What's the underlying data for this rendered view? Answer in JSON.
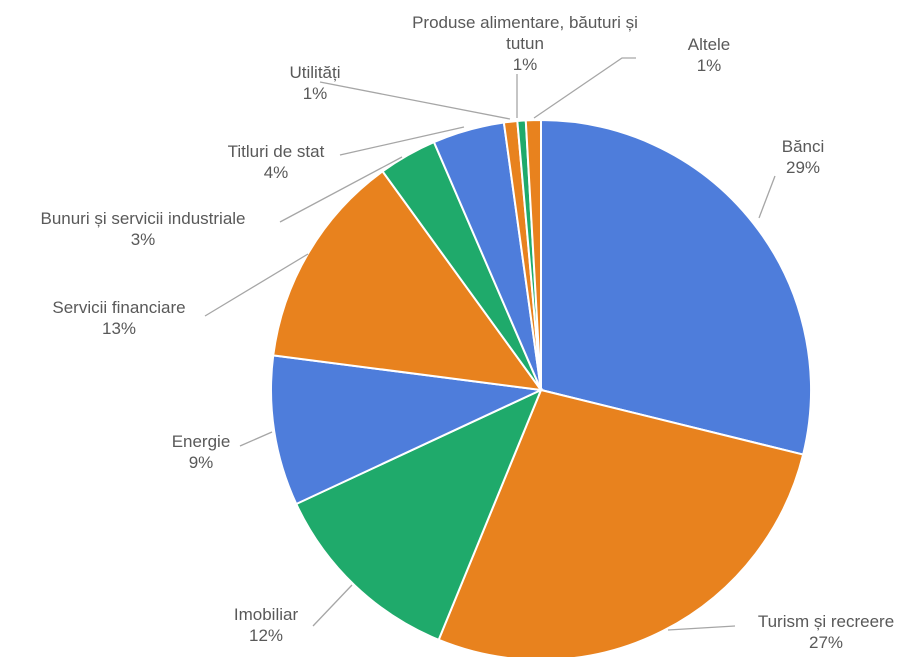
{
  "chart_data": {
    "type": "pie",
    "title": "",
    "series": [
      {
        "values": [
          29,
          27,
          12,
          9,
          13,
          3,
          4,
          1,
          1,
          1
        ],
        "categories": [
          "Bănci",
          "Turism și recreere",
          "Imobiliar",
          "Energie",
          "Servicii financiare",
          "Bunuri și servicii industriale",
          "Titluri de stat",
          "Utilități",
          "Produse alimentare, băuturi și tutun",
          "Altele"
        ]
      }
    ],
    "slices": [
      {
        "label_lines": [
          "Bănci"
        ],
        "pct_text": "29%",
        "value": 28.9,
        "color": "#4e7ddb"
      },
      {
        "label_lines": [
          "Turism și recreere"
        ],
        "pct_text": "27%",
        "value": 27.4,
        "color": "#e8821e"
      },
      {
        "label_lines": [
          "Imobiliar"
        ],
        "pct_text": "12%",
        "value": 11.9,
        "color": "#1faa6b"
      },
      {
        "label_lines": [
          "Energie"
        ],
        "pct_text": "9%",
        "value": 9.0,
        "color": "#4e7ddb"
      },
      {
        "label_lines": [
          "Servicii financiare"
        ],
        "pct_text": "13%",
        "value": 13.0,
        "color": "#e8821e"
      },
      {
        "label_lines": [
          "Bunuri și servicii industriale"
        ],
        "pct_text": "3%",
        "value": 3.5,
        "color": "#1faa6b"
      },
      {
        "label_lines": [
          "Titluri de stat"
        ],
        "pct_text": "4%",
        "value": 4.3,
        "color": "#4e7ddb"
      },
      {
        "label_lines": [
          "Utilități"
        ],
        "pct_text": "1%",
        "value": 0.8,
        "color": "#e8821e"
      },
      {
        "label_lines": [
          "Produse alimentare, băuturi și",
          "tutun"
        ],
        "pct_text": "1%",
        "value": 0.5,
        "color": "#1faa6b"
      },
      {
        "label_lines": [
          "Altele"
        ],
        "pct_text": "1%",
        "value": 0.9,
        "color": "#e8821e"
      }
    ]
  }
}
